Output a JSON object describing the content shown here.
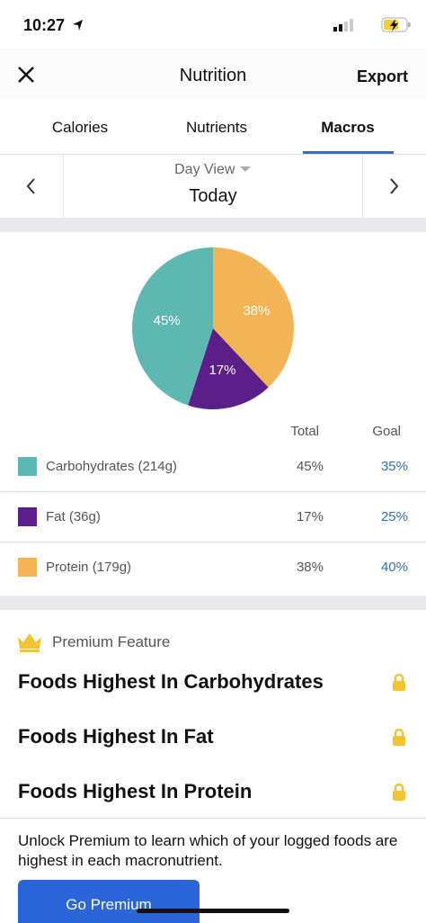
{
  "status_bar": {
    "time": "10:27"
  },
  "header": {
    "title": "Nutrition",
    "action": "Export"
  },
  "tabs": [
    "Calories",
    "Nutrients",
    "Macros"
  ],
  "date_nav": {
    "mode": "Day View",
    "day": "Today"
  },
  "chart_data": {
    "type": "pie",
    "values": [
      38,
      17,
      45
    ],
    "value_labels": [
      "38%",
      "17%",
      "45%"
    ],
    "colors": [
      "#f2b455",
      "#5b1f8a",
      "#5db8b2"
    ]
  },
  "macros": {
    "columns": [
      "Total",
      "Goal"
    ],
    "rows": [
      {
        "name": "Carbohydrates (214g)",
        "color": "#5db8b2",
        "total": "45%",
        "goal": "35%"
      },
      {
        "name": "Fat (36g)",
        "color": "#5b1f8a",
        "total": "17%",
        "goal": "25%"
      },
      {
        "name": "Protein (179g)",
        "color": "#f2b455",
        "total": "38%",
        "goal": "40%"
      }
    ]
  },
  "premium": {
    "label": "Premium Feature",
    "items": [
      "Foods Highest In Carbohydrates",
      "Foods Highest In Fat",
      "Foods Highest In Protein"
    ],
    "description": "Unlock Premium to learn which of your logged foods are highest in each macronutrient.",
    "button": "Go Premium"
  }
}
